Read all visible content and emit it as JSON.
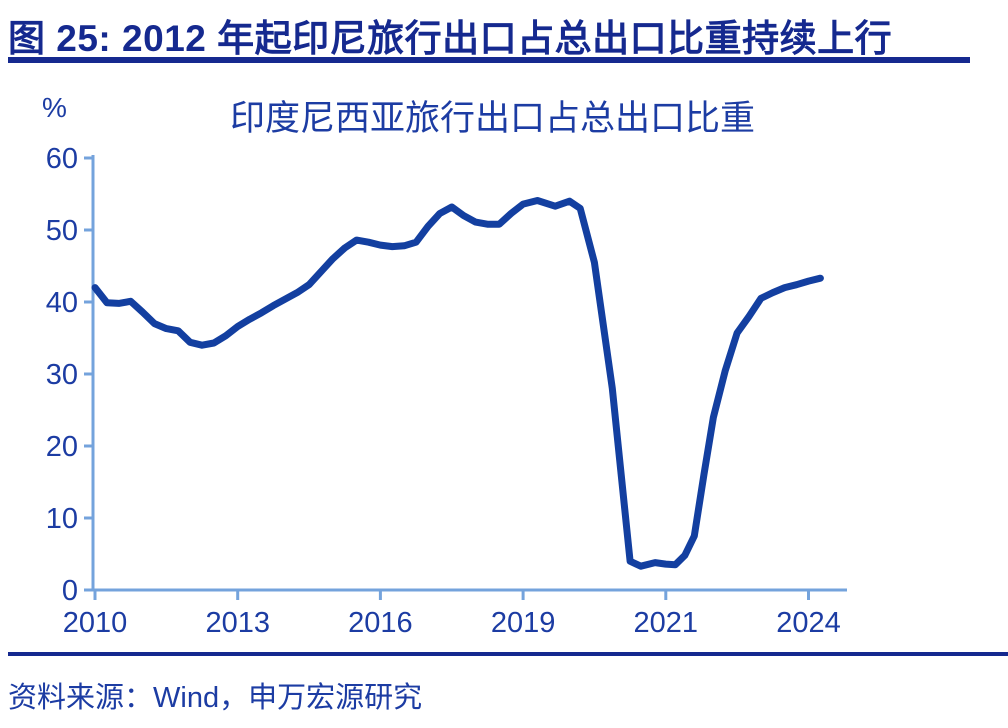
{
  "figure": {
    "heading": "图 25: 2012 年起印尼旅行出口占总出口比重持续上行",
    "source": "资料来源：Wind，申万宏源研究"
  },
  "chart_data": {
    "type": "line",
    "title": "印度尼西亚旅行出口占总出口比重",
    "unit_label": "%",
    "xlabel": "",
    "ylabel": "%",
    "ylim": [
      0,
      60
    ],
    "y_ticks": [
      0,
      10,
      20,
      30,
      40,
      50,
      60
    ],
    "x_tick_years": [
      2010,
      2013,
      2016,
      2019,
      2021,
      2024
    ],
    "grid": false,
    "legend_position": "none",
    "series": [
      {
        "name": "印度尼西亚旅行出口占总出口比重",
        "points": [
          [
            2010.0,
            42.0
          ],
          [
            2010.25,
            39.9
          ],
          [
            2010.5,
            39.8
          ],
          [
            2010.75,
            40.1
          ],
          [
            2011.0,
            38.6
          ],
          [
            2011.25,
            37.0
          ],
          [
            2011.5,
            36.3
          ],
          [
            2011.75,
            36.0
          ],
          [
            2012.0,
            34.4
          ],
          [
            2012.25,
            34.0
          ],
          [
            2012.5,
            34.3
          ],
          [
            2012.75,
            35.3
          ],
          [
            2013.0,
            36.6
          ],
          [
            2013.25,
            37.6
          ],
          [
            2013.5,
            38.5
          ],
          [
            2013.75,
            39.5
          ],
          [
            2014.0,
            40.4
          ],
          [
            2014.25,
            41.3
          ],
          [
            2014.5,
            42.4
          ],
          [
            2014.75,
            44.2
          ],
          [
            2015.0,
            46.0
          ],
          [
            2015.25,
            47.5
          ],
          [
            2015.5,
            48.6
          ],
          [
            2015.75,
            48.3
          ],
          [
            2016.0,
            47.9
          ],
          [
            2016.25,
            47.7
          ],
          [
            2016.5,
            47.8
          ],
          [
            2016.75,
            48.3
          ],
          [
            2017.0,
            50.5
          ],
          [
            2017.25,
            52.3
          ],
          [
            2017.5,
            53.2
          ],
          [
            2017.75,
            52.0
          ],
          [
            2018.0,
            51.1
          ],
          [
            2018.25,
            50.8
          ],
          [
            2018.5,
            50.8
          ],
          [
            2018.75,
            52.3
          ],
          [
            2019.0,
            53.6
          ],
          [
            2019.2,
            54.1
          ],
          [
            2019.45,
            53.3
          ],
          [
            2019.65,
            54.0
          ],
          [
            2019.8,
            53.0
          ],
          [
            2020.0,
            45.5
          ],
          [
            2020.25,
            28.0
          ],
          [
            2020.5,
            4.0
          ],
          [
            2020.65,
            3.3
          ],
          [
            2020.85,
            3.8
          ],
          [
            2021.0,
            3.6
          ],
          [
            2021.2,
            3.5
          ],
          [
            2021.4,
            4.8
          ],
          [
            2021.6,
            7.5
          ],
          [
            2021.8,
            16.0
          ],
          [
            2022.0,
            24.0
          ],
          [
            2022.25,
            30.5
          ],
          [
            2022.5,
            35.7
          ],
          [
            2022.75,
            38.0
          ],
          [
            2023.0,
            40.5
          ],
          [
            2023.25,
            41.3
          ],
          [
            2023.5,
            42.0
          ],
          [
            2023.75,
            42.4
          ],
          [
            2024.0,
            42.9
          ],
          [
            2024.25,
            43.3
          ]
        ]
      }
    ],
    "colors": {
      "line": "#133FA0",
      "axis": "#74A3DC",
      "tick_label": "#1C3CA3"
    }
  },
  "colors": {
    "heading_navy": "#15298F",
    "chart_text_blue": "#1C3CA3"
  }
}
